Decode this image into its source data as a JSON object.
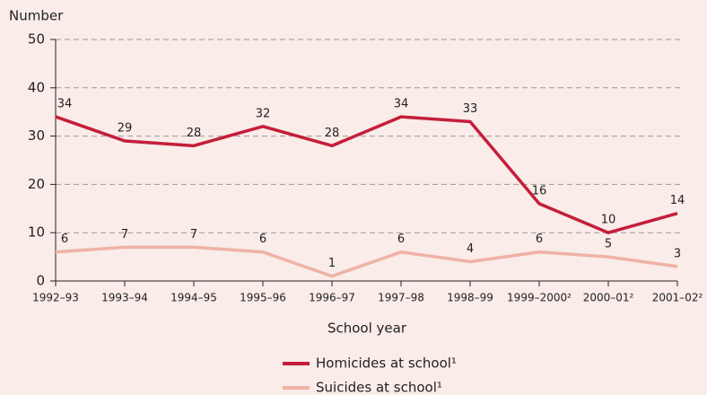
{
  "chart_data": {
    "type": "line",
    "y_label": "Number",
    "x_label": "School year",
    "categories": [
      "1992–93",
      "1993–94",
      "1994–95",
      "1995–96",
      "1996–97",
      "1997–98",
      "1998–99",
      "1999–2000²",
      "2000–01²",
      "2001–02²"
    ],
    "series": [
      {
        "name": "Homicides at school¹",
        "color": "#c41e3a",
        "values": [
          34,
          29,
          28,
          32,
          28,
          34,
          33,
          16,
          10,
          14
        ]
      },
      {
        "name": "Suicides at school¹",
        "color": "#f0b2a6",
        "values": [
          6,
          7,
          7,
          6,
          1,
          6,
          4,
          6,
          5,
          3
        ]
      }
    ],
    "ylim": [
      0,
      50
    ],
    "yticks": [
      0,
      10,
      20,
      30,
      40,
      50
    ],
    "grid": true
  }
}
